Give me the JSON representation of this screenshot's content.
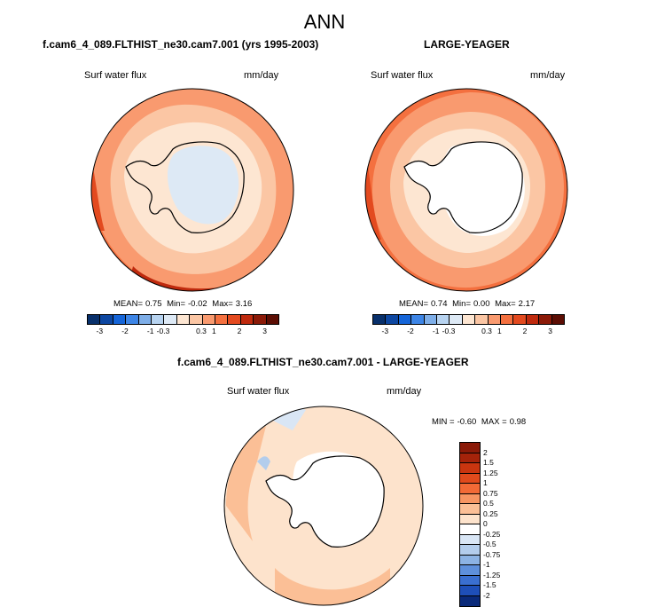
{
  "title": "ANN",
  "panels": {
    "model": {
      "title": "f.cam6_4_089.FLTHIST_ne30.cam7.001 (yrs 1995-2003)",
      "variable": "Surf water flux",
      "units": "mm/day",
      "mean_label": "MEAN=",
      "mean": "0.75",
      "min_label": "Min=",
      "min": "-0.02",
      "max_label": "Max=",
      "max": "3.16"
    },
    "obs": {
      "title": "LARGE-YEAGER",
      "variable": "Surf water flux",
      "units": "mm/day",
      "mean_label": "MEAN=",
      "mean": "0.74",
      "min_label": "Min=",
      "min": "0.00",
      "max_label": "Max=",
      "max": "2.17"
    },
    "diff": {
      "title": "f.cam6_4_089.FLTHIST_ne30.cam7.001 - LARGE-YEAGER",
      "variable": "Surf water flux",
      "units": "mm/day",
      "min_label": "MIN =",
      "min": "-0.60",
      "max_label": "MAX =",
      "max": "0.98"
    }
  },
  "colorbar_top": {
    "colors": [
      "#08306b",
      "#0d47a1",
      "#1565d8",
      "#3d85e6",
      "#7eaee8",
      "#b7d3f0",
      "#dde9f5",
      "#fde6d2",
      "#fbc6a4",
      "#f99a6f",
      "#f4703f",
      "#e34a1f",
      "#bf2a0e",
      "#8b1a08",
      "#5c0e04"
    ],
    "labels": [
      "-3",
      "-2",
      "-1",
      "-0.3",
      "0.3",
      "1",
      "2",
      "3"
    ]
  },
  "colorbar_diff": {
    "colors": [
      "#8b1a08",
      "#a5230a",
      "#c9350f",
      "#e04a1c",
      "#f26a36",
      "#f79562",
      "#fbbf96",
      "#fde3cc",
      "#ffffff",
      "#d9e6f5",
      "#b3cdec",
      "#8cb3e4",
      "#5e90dc",
      "#3a6fd0",
      "#1e4fb8",
      "#0a2a7a"
    ],
    "labels": [
      "2",
      "1.5",
      "1.25",
      "1",
      "0.75",
      "0.5",
      "0.25",
      "0",
      "-0.25",
      "-0.5",
      "-0.75",
      "-1",
      "-1.25",
      "-1.5",
      "-2"
    ]
  },
  "map_colors": {
    "land_white": "#ffffff",
    "ice_blue": "#dde9f5",
    "pale": "#fde6d2",
    "light": "#fbc6a4",
    "mid": "#f99a6f",
    "strong": "#f4703f",
    "dark": "#e34a1f",
    "darker": "#bf2a0e"
  }
}
